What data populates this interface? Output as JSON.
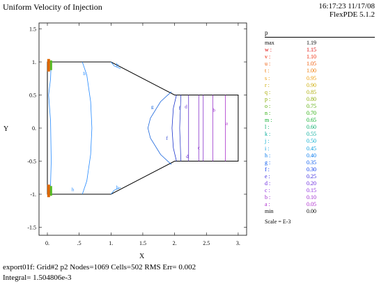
{
  "header": {
    "title": "Uniform Velocity of Injection",
    "timestamp": "16:17:23 11/17/08",
    "software": "FlexPDE 5.1.2"
  },
  "chart_data": {
    "type": "contour",
    "xlabel": "X",
    "ylabel": "Y",
    "xlim": [
      -0.1,
      3.1
    ],
    "ylim": [
      -1.6,
      1.6
    ],
    "xticks": [
      0,
      0.5,
      1,
      1.5,
      2,
      2.5,
      3
    ],
    "xtick_labels": [
      "0.",
      ".5",
      "1.",
      "1.5",
      "2.",
      "2.5",
      "3."
    ],
    "yticks": [
      1.5,
      1,
      0.5,
      0,
      -0.5,
      -1,
      -1.5
    ],
    "ytick_labels": [
      "1.5",
      "1.",
      "0.5",
      "0.",
      "-0.5",
      "-1.",
      "-1.5"
    ],
    "geometry": [
      [
        0,
        1
      ],
      [
        1,
        1
      ],
      [
        2,
        0.5
      ],
      [
        3,
        0.5
      ],
      [
        3,
        -0.5
      ],
      [
        2,
        -0.5
      ],
      [
        1,
        -1
      ],
      [
        0,
        -1
      ]
    ],
    "contours": [
      {
        "label": "h",
        "level": 0.4,
        "color": "#2288ff",
        "points": [
          [
            0.06,
            1
          ],
          [
            0.05,
            0.75
          ],
          [
            0.02,
            0.5
          ],
          [
            0.05,
            0.1
          ],
          [
            0.06,
            -0.5
          ],
          [
            0.05,
            -0.85
          ],
          [
            0.04,
            -1
          ]
        ]
      },
      {
        "label": "h",
        "level": 0.4,
        "color": "#2288ff",
        "points": [
          [
            0.55,
            1
          ],
          [
            0.62,
            0.8
          ],
          [
            0.68,
            0.4
          ],
          [
            0.7,
            0
          ],
          [
            0.68,
            -0.4
          ],
          [
            0.62,
            -0.8
          ],
          [
            0.55,
            -1
          ]
        ]
      },
      {
        "label": "h",
        "level": 0.4,
        "color": "#2288ff",
        "points": [
          [
            1.0,
            1
          ],
          [
            1.05,
            0.94
          ],
          [
            1.15,
            0.9
          ]
        ]
      },
      {
        "label": "h",
        "level": 0.4,
        "color": "#2288ff",
        "points": [
          [
            1.0,
            -1
          ],
          [
            1.05,
            -0.94
          ],
          [
            1.15,
            -0.9
          ]
        ]
      },
      {
        "label": "g",
        "level": 0.35,
        "color": "#1a66dd",
        "points": [
          [
            1.95,
            0.55
          ],
          [
            1.78,
            0.4
          ],
          [
            1.62,
            0.15
          ],
          [
            1.58,
            0
          ],
          [
            1.62,
            -0.15
          ],
          [
            1.78,
            -0.4
          ],
          [
            1.95,
            -0.55
          ]
        ]
      },
      {
        "label": "f",
        "level": 0.3,
        "color": "#1a33cc",
        "points": [
          [
            2.03,
            0.5
          ],
          [
            1.98,
            0.3
          ],
          [
            1.96,
            0
          ],
          [
            1.98,
            -0.3
          ],
          [
            2.03,
            -0.5
          ]
        ]
      },
      {
        "label": "e",
        "level": 0.25,
        "color": "#3344cc",
        "points": [
          [
            2.1,
            0.5
          ],
          [
            2.08,
            0
          ],
          [
            2.1,
            -0.5
          ]
        ]
      },
      {
        "label": "d",
        "level": 0.2,
        "color": "#6633cc",
        "points": [
          [
            2.22,
            0.5
          ],
          [
            2.22,
            -0.5
          ]
        ]
      },
      {
        "label": "c",
        "level": 0.15,
        "color": "#8833cc",
        "points": [
          [
            2.38,
            0.5
          ],
          [
            2.38,
            -0.5
          ]
        ]
      },
      {
        "label": "c",
        "level": 0.15,
        "color": "#8833cc",
        "points": [
          [
            2.45,
            0.5
          ],
          [
            2.45,
            -0.5
          ]
        ]
      },
      {
        "label": "b",
        "level": 0.1,
        "color": "#9933cc",
        "points": [
          [
            2.6,
            0.5
          ],
          [
            2.6,
            -0.5
          ]
        ]
      },
      {
        "label": "a",
        "level": 0.05,
        "color": "#aa33cc",
        "points": [
          [
            2.8,
            0.5
          ],
          [
            2.8,
            -0.5
          ]
        ]
      }
    ],
    "contour_labels": [
      {
        "text": "h",
        "x": 0.58,
        "y": 0.8,
        "color": "#2288ff"
      },
      {
        "text": "h",
        "x": 1.1,
        "y": 0.93,
        "color": "#2288ff"
      },
      {
        "text": "h",
        "x": 1.1,
        "y": -0.92,
        "color": "#2288ff"
      },
      {
        "text": "h",
        "x": 0.4,
        "y": -0.95,
        "color": "#2288ff"
      },
      {
        "text": "g",
        "x": 1.65,
        "y": 0.3,
        "color": "#1a66dd"
      },
      {
        "text": "f",
        "x": 1.88,
        "y": -0.18,
        "color": "#1a33cc"
      },
      {
        "text": "f",
        "x": 2.08,
        "y": 0.28,
        "color": "#1a33cc"
      },
      {
        "text": "d",
        "x": 2.18,
        "y": 0.3,
        "color": "#6633cc"
      },
      {
        "text": "d",
        "x": 2.2,
        "y": -0.45,
        "color": "#6633cc"
      },
      {
        "text": "c",
        "x": 2.38,
        "y": -0.32,
        "color": "#8833cc"
      },
      {
        "text": "b",
        "x": 2.62,
        "y": 0.25,
        "color": "#9933cc"
      },
      {
        "text": "a",
        "x": 2.82,
        "y": 0.05,
        "color": "#aa33cc"
      }
    ],
    "hotspots": [
      {
        "x": 0.02,
        "y": 0.95,
        "color": "#dd6600"
      },
      {
        "x": 0.02,
        "y": -0.95,
        "color": "#dd6600"
      }
    ]
  },
  "legend": {
    "variable": "p",
    "rows": [
      {
        "key": "max",
        "value": "1.19",
        "color": "#000000"
      },
      {
        "key": "w :",
        "value": "1.15",
        "color": "#dd0000"
      },
      {
        "key": "v :",
        "value": "1.10",
        "color": "#ee2200"
      },
      {
        "key": "u :",
        "value": "1.05",
        "color": "#ee5500"
      },
      {
        "key": "t :",
        "value": "1.00",
        "color": "#ee7700"
      },
      {
        "key": "s :",
        "value": "0.95",
        "color": "#ee9900"
      },
      {
        "key": "r :",
        "value": "0.90",
        "color": "#ccaa00"
      },
      {
        "key": "q :",
        "value": "0.85",
        "color": "#aaaa00"
      },
      {
        "key": "p :",
        "value": "0.80",
        "color": "#88aa00"
      },
      {
        "key": "o :",
        "value": "0.75",
        "color": "#55aa00"
      },
      {
        "key": "n :",
        "value": "0.70",
        "color": "#22aa00"
      },
      {
        "key": "m :",
        "value": "0.65",
        "color": "#00aa22"
      },
      {
        "key": "l :",
        "value": "0.60",
        "color": "#00aa66"
      },
      {
        "key": "k :",
        "value": "0.55",
        "color": "#00aa99"
      },
      {
        "key": "j :",
        "value": "0.50",
        "color": "#00aacc"
      },
      {
        "key": "i :",
        "value": "0.45",
        "color": "#0099dd"
      },
      {
        "key": "h :",
        "value": "0.40",
        "color": "#0077ee"
      },
      {
        "key": "g :",
        "value": "0.35",
        "color": "#0055ee"
      },
      {
        "key": "f :",
        "value": "0.30",
        "color": "#0033ee"
      },
      {
        "key": "e :",
        "value": "0.25",
        "color": "#3322dd"
      },
      {
        "key": "d :",
        "value": "0.20",
        "color": "#6622dd"
      },
      {
        "key": "c :",
        "value": "0.15",
        "color": "#8822dd"
      },
      {
        "key": "b :",
        "value": "0.10",
        "color": "#9922cc"
      },
      {
        "key": "a :",
        "value": "0.05",
        "color": "#aa22cc"
      },
      {
        "key": "min",
        "value": "0.00",
        "color": "#000000"
      }
    ],
    "scale": "Scale = E-3"
  },
  "footer": {
    "line1": "export01f:  Grid#2  p2  Nodes=1069 Cells=502 RMS Err= 0.002",
    "line2": "Integral=  1.504806e-3"
  }
}
